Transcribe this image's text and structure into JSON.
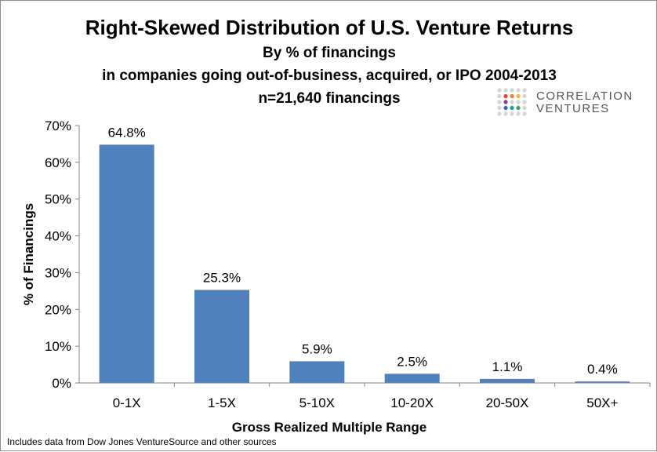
{
  "chart_data": {
    "type": "bar",
    "title": "Right-Skewed Distribution of U.S. Venture Returns",
    "subtitle": [
      "By % of financings",
      "in companies going out-of-business, acquired, or IPO 2004-2013",
      "n=21,640 financings"
    ],
    "categories": [
      "0-1X",
      "1-5X",
      "5-10X",
      "10-20X",
      "20-50X",
      "50X+"
    ],
    "values": [
      64.8,
      25.3,
      5.9,
      2.5,
      1.1,
      0.4
    ],
    "data_labels": [
      "64.8%",
      "25.3%",
      "5.9%",
      "2.5%",
      "1.1%",
      "0.4%"
    ],
    "xlabel": "Gross Realized Multiple Range",
    "ylabel": "% of Financings",
    "ylim": [
      0,
      70
    ],
    "yticks": [
      "0%",
      "10%",
      "20%",
      "30%",
      "40%",
      "50%",
      "60%",
      "70%"
    ],
    "grid": false,
    "bar_color": "#4f81bd"
  },
  "logo": {
    "line1": "Correlation",
    "line2": "Ventures"
  },
  "source_note": "Includes data from Dow Jones VentureSource and other sources"
}
